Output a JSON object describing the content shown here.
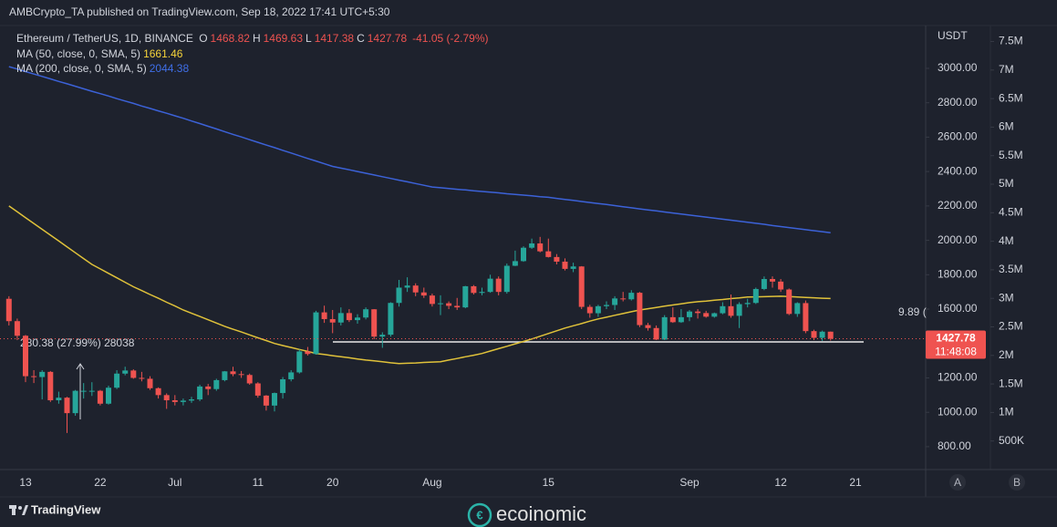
{
  "header": {
    "publisher": "AMBCrypto_TA published on TradingView.com, Sep 18, 2022 17:41 UTC+5:30"
  },
  "legend": {
    "symbol": "Ethereum / TetherUS, 1D, BINANCE",
    "fields": [
      {
        "label": "O",
        "value": "1468.82"
      },
      {
        "label": "H",
        "value": "1469.63"
      },
      {
        "label": "L",
        "value": "1417.38"
      },
      {
        "label": "C",
        "value": "1427.78"
      }
    ],
    "change": "-41.05 (-2.79%)",
    "ma": [
      {
        "label": "MA (50, close, 0, SMA, 5)",
        "value": "1661.46",
        "color": "#f5d33a"
      },
      {
        "label": "MA (200, close, 0, SMA, 5)",
        "value": "2044.38",
        "color": "#3f6fe8"
      }
    ]
  },
  "chart_data": {
    "type": "candlestick",
    "grid": false,
    "up_color": "#26a69a",
    "down_color": "#ef5350",
    "categories": [
      null,
      null,
      "13",
      null,
      null,
      null,
      null,
      null,
      null,
      null,
      null,
      "22",
      null,
      null,
      null,
      null,
      null,
      null,
      null,
      null,
      "Jul",
      null,
      null,
      null,
      null,
      null,
      null,
      null,
      null,
      null,
      "11",
      null,
      null,
      null,
      null,
      null,
      null,
      null,
      null,
      "20",
      null,
      null,
      null,
      null,
      null,
      null,
      null,
      null,
      null,
      null,
      null,
      "Aug",
      null,
      null,
      null,
      null,
      null,
      null,
      null,
      null,
      null,
      null,
      null,
      null,
      null,
      "15",
      null,
      null,
      null,
      null,
      null,
      null,
      null,
      null,
      null,
      null,
      null,
      null,
      null,
      null,
      null,
      null,
      "Sep",
      null,
      null,
      null,
      null,
      null,
      null,
      null,
      null,
      null,
      null,
      "12",
      null,
      null,
      null,
      null,
      null,
      null,
      null,
      null,
      "21"
    ],
    "open": [
      1660,
      1530,
      1445,
      1210,
      1205,
      1235,
      1070,
      1085,
      995,
      1125,
      1125,
      1125,
      1050,
      1143,
      1225,
      1243,
      1200,
      1195,
      1140,
      1100,
      1070,
      1060,
      1068,
      1075,
      1150,
      1135,
      1187,
      1238,
      1222,
      1217,
      1168,
      1097,
      1039,
      1112,
      1192,
      1232,
      1354,
      1339,
      1581,
      1542,
      1522,
      1577,
      1536,
      1551,
      1599,
      1440,
      1451,
      1636,
      1725,
      1737,
      1697,
      1679,
      1630,
      1634,
      1619,
      1610,
      1733,
      1694,
      1700,
      1777,
      1700,
      1852,
      1879,
      1957,
      1982,
      1936,
      1903,
      1876,
      1834,
      1848,
      1613,
      1576,
      1617,
      1624,
      1662,
      1657,
      1695,
      1507,
      1490,
      1423,
      1553,
      1524,
      1553,
      1586,
      1577,
      1556,
      1576,
      1617,
      1561,
      1629,
      1636,
      1717,
      1775,
      1760,
      1714,
      1572,
      1635,
      1472,
      1433,
      1468.82,
      null,
      null,
      null
    ],
    "high": [
      1675,
      1545,
      1450,
      1245,
      1245,
      1240,
      1120,
      1090,
      1130,
      1170,
      1175,
      1130,
      1155,
      1245,
      1265,
      1250,
      1235,
      1210,
      1145,
      1110,
      1100,
      1080,
      1090,
      1160,
      1165,
      1195,
      1240,
      1265,
      1240,
      1225,
      1175,
      1100,
      1115,
      1205,
      1245,
      1365,
      1380,
      1590,
      1620,
      1595,
      1610,
      1600,
      1570,
      1610,
      1600,
      1465,
      1640,
      1770,
      1785,
      1750,
      1725,
      1690,
      1680,
      1645,
      1665,
      1735,
      1740,
      1725,
      1800,
      1790,
      1865,
      1940,
      1965,
      2010,
      2020,
      2010,
      1920,
      1895,
      1870,
      1850,
      1625,
      1625,
      1645,
      1675,
      1700,
      1710,
      1700,
      1520,
      1505,
      1565,
      1610,
      1600,
      1595,
      1600,
      1590,
      1580,
      1640,
      1685,
      1640,
      1660,
      1725,
      1790,
      1790,
      1775,
      1720,
      1640,
      1650,
      1480,
      1475,
      1469.63,
      null,
      null,
      null
    ],
    "low": [
      1505,
      1420,
      1175,
      1170,
      1075,
      1060,
      1050,
      880,
      980,
      1080,
      1095,
      1040,
      1045,
      1135,
      1215,
      1195,
      1180,
      1130,
      1080,
      1020,
      1040,
      1040,
      1055,
      1065,
      1100,
      1125,
      1180,
      1210,
      1200,
      1160,
      1085,
      1010,
      1005,
      1080,
      1180,
      1225,
      1330,
      1335,
      1520,
      1460,
      1505,
      1525,
      1515,
      1540,
      1425,
      1375,
      1440,
      1615,
      1700,
      1675,
      1665,
      1615,
      1565,
      1600,
      1595,
      1605,
      1685,
      1680,
      1695,
      1680,
      1690,
      1850,
      1875,
      1950,
      1930,
      1900,
      1860,
      1825,
      1815,
      1600,
      1550,
      1555,
      1600,
      1595,
      1645,
      1650,
      1495,
      1475,
      1420,
      1420,
      1520,
      1520,
      1530,
      1545,
      1550,
      1550,
      1570,
      1550,
      1490,
      1610,
      1630,
      1710,
      1725,
      1700,
      1565,
      1555,
      1460,
      1420,
      1415,
      1417.38,
      null,
      null,
      null
    ],
    "close": [
      1530,
      1445,
      1210,
      1205,
      1235,
      1070,
      1085,
      995,
      1125,
      1125,
      1125,
      1050,
      1143,
      1225,
      1243,
      1200,
      1195,
      1140,
      1100,
      1070,
      1060,
      1068,
      1075,
      1150,
      1135,
      1187,
      1238,
      1222,
      1217,
      1168,
      1097,
      1039,
      1112,
      1192,
      1232,
      1354,
      1339,
      1581,
      1542,
      1522,
      1577,
      1536,
      1551,
      1599,
      1440,
      1451,
      1636,
      1725,
      1737,
      1697,
      1679,
      1630,
      1634,
      1619,
      1610,
      1733,
      1694,
      1700,
      1777,
      1700,
      1852,
      1879,
      1957,
      1982,
      1936,
      1903,
      1876,
      1834,
      1848,
      1613,
      1576,
      1617,
      1624,
      1662,
      1657,
      1695,
      1507,
      1490,
      1423,
      1553,
      1524,
      1553,
      1586,
      1577,
      1556,
      1576,
      1617,
      1561,
      1629,
      1636,
      1717,
      1775,
      1760,
      1714,
      1572,
      1635,
      1472,
      1433,
      1468.82,
      1427.78,
      null,
      null,
      null
    ],
    "series": [
      {
        "name": "MA (50, close, 0, SMA, 5)",
        "color": "#e0c23a",
        "values": [
          2200,
          2166,
          2132,
          2098,
          2064,
          2030,
          1996,
          1962,
          1928,
          1894,
          1860,
          1834,
          1808,
          1782,
          1756,
          1730,
          1708,
          1685,
          1663,
          1640,
          1618,
          1595,
          1576,
          1557,
          1538,
          1519,
          1500,
          1483,
          1467,
          1450,
          1433,
          1417,
          1400,
          1388,
          1377,
          1365,
          1354,
          1342,
          1336,
          1329,
          1323,
          1317,
          1310,
          1304,
          1299,
          1294,
          1288,
          1283,
          1285,
          1287,
          1290,
          1292,
          1294,
          1304,
          1313,
          1323,
          1332,
          1342,
          1356,
          1370,
          1384,
          1398,
          1412,
          1426,
          1442,
          1458,
          1474,
          1490,
          1503,
          1516,
          1530,
          1543,
          1553,
          1564,
          1574,
          1585,
          1595,
          1602,
          1609,
          1617,
          1624,
          1631,
          1638,
          1643,
          1647,
          1652,
          1656,
          1661,
          1665,
          1670,
          1671,
          1672,
          1674,
          1675,
          1673,
          1670,
          1668,
          1666,
          1663,
          1661.46,
          null,
          null,
          null
        ]
      },
      {
        "name": "MA (200, close, 0, SMA, 5)",
        "color": "#3c62d8",
        "values": [
          3010,
          2996,
          2981,
          2967,
          2953,
          2939,
          2924,
          2910,
          2896,
          2881,
          2867,
          2853,
          2839,
          2824,
          2810,
          2796,
          2781,
          2767,
          2753,
          2739,
          2724,
          2710,
          2694,
          2679,
          2663,
          2648,
          2632,
          2616,
          2601,
          2585,
          2570,
          2554,
          2539,
          2523,
          2508,
          2492,
          2476,
          2461,
          2445,
          2430,
          2420,
          2410,
          2400,
          2390,
          2380,
          2370,
          2360,
          2350,
          2340,
          2330,
          2320,
          2310,
          2306,
          2301,
          2297,
          2293,
          2288,
          2284,
          2280,
          2276,
          2271,
          2267,
          2263,
          2259,
          2254,
          2250,
          2244,
          2238,
          2232,
          2226,
          2220,
          2214,
          2208,
          2202,
          2195,
          2189,
          2183,
          2177,
          2171,
          2165,
          2159,
          2153,
          2147,
          2141,
          2135,
          2129,
          2123,
          2117,
          2111,
          2105,
          2099,
          2093,
          2086,
          2080,
          2074,
          2068,
          2062,
          2056,
          2050,
          2044.38,
          null,
          null,
          null
        ]
      }
    ],
    "ylim": [
      667,
      3249
    ],
    "yticks": [
      {
        "value": 800,
        "label": "800.00"
      },
      {
        "value": 1000,
        "label": "1000.00"
      },
      {
        "value": 1200,
        "label": "1200.00"
      },
      {
        "value": 1600,
        "label": "1600.00"
      },
      {
        "value": 1800,
        "label": "1800.00"
      },
      {
        "value": 2000,
        "label": "2000.00"
      },
      {
        "value": 2200,
        "label": "2200.00"
      },
      {
        "value": 2400,
        "label": "2400.00"
      },
      {
        "value": 2600,
        "label": "2600.00"
      },
      {
        "value": 2800,
        "label": "2800.00"
      },
      {
        "value": 3000,
        "label": "3000.00"
      }
    ],
    "y_label": "USDT",
    "y2lim": [
      0,
      7780000
    ],
    "y2ticks": [
      {
        "value": 500000,
        "label": "500K"
      },
      {
        "value": 1000000,
        "label": "1M"
      },
      {
        "value": 1500000,
        "label": "1.5M"
      },
      {
        "value": 2000000,
        "label": "2M"
      },
      {
        "value": 2500000,
        "label": "2.5M"
      },
      {
        "value": 3000000,
        "label": "3M"
      },
      {
        "value": 3500000,
        "label": "3.5M"
      },
      {
        "value": 4000000,
        "label": "4M"
      },
      {
        "value": 4500000,
        "label": "4.5M"
      },
      {
        "value": 5000000,
        "label": "5M"
      },
      {
        "value": 5500000,
        "label": "5.5M"
      },
      {
        "value": 6000000,
        "label": "6M"
      },
      {
        "value": 6500000,
        "label": "6.5M"
      },
      {
        "value": 7000000,
        "label": "7M"
      },
      {
        "value": 7500000,
        "label": "7.5M"
      }
    ],
    "last_price": {
      "value": 1427.78,
      "label": "1427.78",
      "countdown": "11:48:08"
    },
    "annotations": [
      "280.38 (27.99%) 28038",
      "9.89 ("
    ]
  },
  "controls": [
    "A",
    "B"
  ],
  "footer": {
    "brand": "TradingView",
    "watermark": "ecoinomic"
  }
}
